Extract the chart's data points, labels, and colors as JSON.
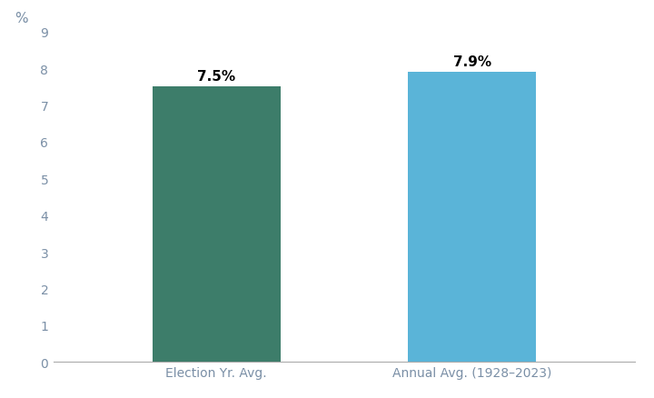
{
  "categories": [
    "Election Yr. Avg.",
    "Annual Avg. (1928–2023)"
  ],
  "values": [
    7.5,
    7.9
  ],
  "labels": [
    "7.5%",
    "7.9%"
  ],
  "bar_colors": [
    "#3d7d6a",
    "#5ab4d8"
  ],
  "ylabel": "%",
  "ylim": [
    0,
    9
  ],
  "yticks": [
    0,
    1,
    2,
    3,
    4,
    5,
    6,
    7,
    8,
    9
  ],
  "background_color": "#ffffff",
  "bar_width": 0.22,
  "x_positions": [
    0.28,
    0.72
  ],
  "xlim": [
    0.0,
    1.0
  ],
  "label_fontsize": 11,
  "tick_fontsize": 10,
  "tick_color": "#7a8fa6",
  "ylabel_fontsize": 11,
  "bottom_spine_color": "#aaaaaa"
}
